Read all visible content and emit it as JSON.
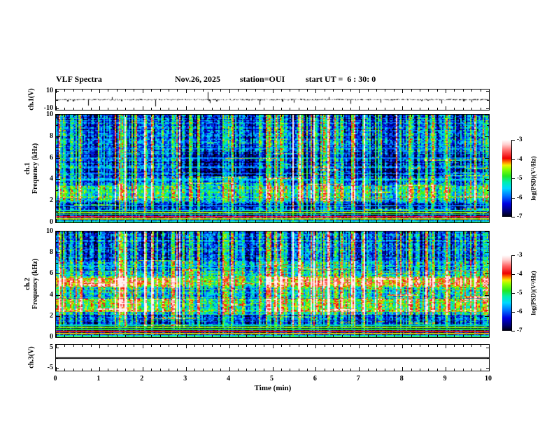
{
  "header": {
    "title": "VLF Spectra",
    "date": "Nov.26, 2025",
    "station": "station=OUI",
    "start_ut": "start UT =  6 : 30: 0"
  },
  "x_axis": {
    "label": "Time (min)",
    "min": 0,
    "max": 10,
    "major_ticks": [
      0,
      1,
      2,
      3,
      4,
      5,
      6,
      7,
      8,
      9,
      10
    ],
    "minor_divisions": 5
  },
  "colorbar": {
    "label": "log(PSD)(V²/Hz)",
    "ticks": [
      -3,
      -4,
      -5,
      -6,
      -7
    ],
    "min": -7,
    "max": -3
  },
  "colormap": [
    [
      0.0,
      "#000008"
    ],
    [
      0.07,
      "#000070"
    ],
    [
      0.17,
      "#0000e0"
    ],
    [
      0.27,
      "#0070ff"
    ],
    [
      0.37,
      "#00d8ff"
    ],
    [
      0.45,
      "#00eeb0"
    ],
    [
      0.53,
      "#22e822"
    ],
    [
      0.62,
      "#90ff00"
    ],
    [
      0.67,
      "#f0f000"
    ],
    [
      0.71,
      "#ff8000"
    ],
    [
      0.76,
      "#ee0000"
    ],
    [
      0.86,
      "#ff6868"
    ],
    [
      0.94,
      "#ffd0d0"
    ],
    [
      1.0,
      "#ffffff"
    ]
  ],
  "chart_data": [
    {
      "id": "ch1_waveform",
      "type": "line",
      "ylabel": "ch.1(V)",
      "yrange": [
        -12,
        12
      ],
      "yticks": [
        10,
        -10
      ],
      "baseline": 0,
      "noise_amp_v": 0.7,
      "spikes": [
        {
          "t": 0.75,
          "a": -7
        },
        {
          "t": 1.3,
          "a": 3
        },
        {
          "t": 2.3,
          "a": -8
        },
        {
          "t": 3.5,
          "a": 9
        },
        {
          "t": 3.55,
          "a": -4
        },
        {
          "t": 4.7,
          "a": -6
        },
        {
          "t": 5.5,
          "a": -3.5
        },
        {
          "t": 6.3,
          "a": 3
        },
        {
          "t": 6.8,
          "a": -5
        },
        {
          "t": 7.5,
          "a": -3.5
        },
        {
          "t": 8.9,
          "a": -4.5
        },
        {
          "t": 9.6,
          "a": -3
        }
      ]
    },
    {
      "id": "ch1_spectrogram",
      "type": "heatmap",
      "ylabel_top": "ch.1",
      "ylabel_main": "Frequency (kHz)",
      "yrange": [
        0,
        10
      ],
      "yticks": [
        0,
        2,
        4,
        6,
        8,
        10
      ],
      "value_range": [
        -7,
        -3
      ],
      "bands": [
        {
          "f0": 0.0,
          "f1": 1.0,
          "v": -6.9
        },
        {
          "f0": 1.0,
          "f1": 1.8,
          "v": -6.45
        },
        {
          "f0": 1.8,
          "f1": 2.2,
          "v": -5.9
        },
        {
          "f0": 2.2,
          "f1": 3.4,
          "v": -5.25
        },
        {
          "f0": 3.4,
          "f1": 4.3,
          "v": -6.1
        },
        {
          "f0": 4.3,
          "f1": 6.6,
          "v": -6.5
        },
        {
          "f0": 6.6,
          "f1": 10.0,
          "v": -6.15
        }
      ],
      "quiet_interval": {
        "t0": 2.85,
        "t1": 4.85,
        "adjust": [
          {
            "f0": 4.3,
            "f1": 6.6,
            "dv": -0.35
          },
          {
            "f0": 6.6,
            "f1": 10,
            "dv": -0.15
          },
          {
            "f0": 2.2,
            "f1": 3.4,
            "dv": -0.2
          }
        ]
      },
      "early_adjust": {
        "t1": 2.85,
        "adjust": [
          {
            "f0": 4.3,
            "f1": 6.6,
            "dv": 0.25
          },
          {
            "f0": 2.2,
            "f1": 3.4,
            "dv": 0.1
          }
        ]
      },
      "hlines": [
        {
          "f": 0.05,
          "v": -4.8
        },
        {
          "f": 0.12,
          "v": -5.6
        },
        {
          "f": 0.3,
          "v": -4.4
        },
        {
          "f": 0.5,
          "v": -3.8
        },
        {
          "f": 0.72,
          "v": -5.0
        },
        {
          "f": 0.9,
          "v": -4.5
        },
        {
          "f": 1.1,
          "v": -5.4
        },
        {
          "f": 1.55,
          "v": -5.9
        },
        {
          "f": 3.95,
          "v": -5.55
        },
        {
          "f": 4.5,
          "v": -5.8
        },
        {
          "f": 5.15,
          "v": -5.8
        },
        {
          "f": 6.0,
          "v": -5.85
        },
        {
          "f": 6.9,
          "v": -5.95
        }
      ]
    },
    {
      "id": "ch2_spectrogram",
      "type": "heatmap",
      "ylabel_top": "ch.2",
      "ylabel_main": "Frequency (kHz)",
      "yrange": [
        0,
        10
      ],
      "yticks": [
        0,
        2,
        4,
        6,
        8,
        10
      ],
      "value_range": [
        -7,
        -3
      ],
      "bands": [
        {
          "f0": 0.0,
          "f1": 1.0,
          "v": -6.9
        },
        {
          "f0": 1.0,
          "f1": 2.1,
          "v": -6.35
        },
        {
          "f0": 2.1,
          "f1": 2.4,
          "v": -5.6
        },
        {
          "f0": 2.4,
          "f1": 3.6,
          "v": -4.85
        },
        {
          "f0": 3.6,
          "f1": 4.4,
          "v": -5.5
        },
        {
          "f0": 4.4,
          "f1": 4.75,
          "v": -5.2
        },
        {
          "f0": 4.75,
          "f1": 5.65,
          "v": -4.3
        },
        {
          "f0": 5.65,
          "f1": 6.3,
          "v": -5.35
        },
        {
          "f0": 6.3,
          "f1": 7.2,
          "v": -5.85
        },
        {
          "f0": 7.2,
          "f1": 10.0,
          "v": -6.15
        }
      ],
      "quiet_interval": {
        "t0": 2.85,
        "t1": 4.85,
        "adjust": [
          {
            "f0": 2.4,
            "f1": 3.6,
            "dv": -0.5
          },
          {
            "f0": 4.75,
            "f1": 5.65,
            "dv": -0.8
          },
          {
            "f0": 3.6,
            "f1": 4.4,
            "dv": -0.3
          },
          {
            "f0": 4.4,
            "f1": 4.75,
            "dv": -0.4
          }
        ]
      },
      "early_adjust": {
        "t1": 2.85,
        "adjust": [
          {
            "f0": 2.4,
            "f1": 3.6,
            "dv": 0.25
          },
          {
            "f0": 4.75,
            "f1": 5.65,
            "dv": 0.1
          },
          {
            "f0": 1.0,
            "f1": 2.1,
            "dv": 0.1
          }
        ]
      },
      "hlines": [
        {
          "f": 0.05,
          "v": -4.7
        },
        {
          "f": 0.12,
          "v": -5.5
        },
        {
          "f": 0.3,
          "v": -4.3
        },
        {
          "f": 0.5,
          "v": -3.9
        },
        {
          "f": 0.72,
          "v": -4.9
        },
        {
          "f": 0.9,
          "v": -4.6
        },
        {
          "f": 1.1,
          "v": -5.3
        },
        {
          "f": 1.6,
          "v": -5.8
        },
        {
          "f": 6.7,
          "v": -5.6
        },
        {
          "f": 7.6,
          "v": -6.0
        }
      ]
    },
    {
      "id": "ch3_waveform",
      "type": "line",
      "ylabel": "ch.3(V)",
      "yrange": [
        -6.25,
        6.25
      ],
      "yticks": [
        5,
        -5
      ],
      "baseline": 0,
      "noise_amp_v": 0,
      "spikes": []
    }
  ],
  "render": {
    "seed": 42,
    "streaks": 150,
    "blobs": 55,
    "noise": {
      "cell": 0.6,
      "col": 0.5,
      "row": 0.35
    }
  }
}
